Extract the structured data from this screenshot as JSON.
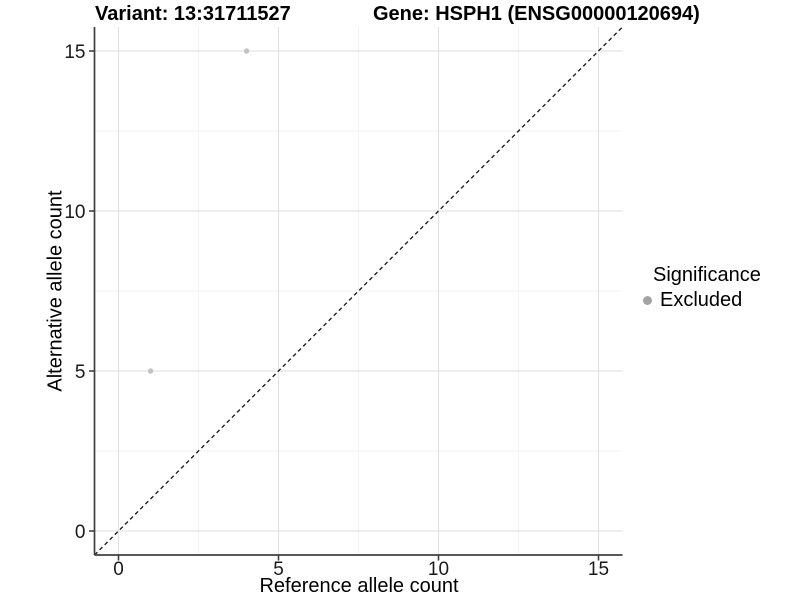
{
  "chart_data": {
    "type": "scatter",
    "title_left": "Variant: 13:31711527",
    "title_right": "Gene: HSPH1 (ENSG00000120694)",
    "xlabel": "Reference allele count",
    "ylabel": "Alternative allele count",
    "xlim": [
      -0.75,
      15.75
    ],
    "ylim": [
      -0.75,
      15.75
    ],
    "x_ticks": [
      0,
      5,
      10,
      15
    ],
    "y_ticks": [
      0,
      5,
      10,
      15
    ],
    "x_minor_ticks": [
      2.5,
      7.5,
      12.5
    ],
    "y_minor_ticks": [
      2.5,
      7.5,
      12.5
    ],
    "grid": true,
    "identity_line": {
      "slope": 1,
      "intercept": 0,
      "style": "dashed",
      "color": "#111111"
    },
    "series": [
      {
        "name": "Excluded",
        "marker": "circle",
        "color": "#c3c3c3",
        "points": [
          {
            "x": 1,
            "y": 5
          },
          {
            "x": 4,
            "y": 15
          }
        ]
      }
    ],
    "legend": {
      "title": "Significance",
      "position": "right",
      "items": [
        {
          "label": "Excluded",
          "marker": "circle",
          "color": "#a3a3a3"
        }
      ]
    },
    "colors": {
      "background": "#ffffff",
      "grid_major": "#e3e3e3",
      "grid_minor": "#f2f2f2",
      "axis_line": "#404040",
      "tick_mark": "#404040",
      "tick_label": "#1a1a1a"
    }
  }
}
